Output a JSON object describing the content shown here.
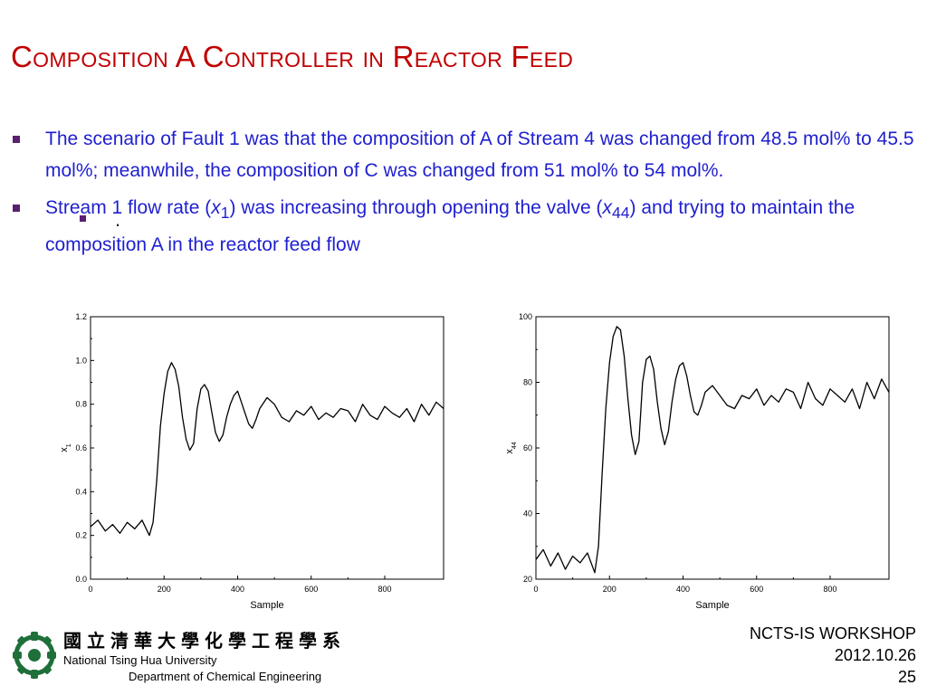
{
  "slide": {
    "title": "Composition A Controller in Reactor Feed",
    "bullets": [
      {
        "parts": [
          "The scenario of Fault 1 was that the composition of A of Stream 4 was changed from 48.5 mol% to 45.5 mol%; meanwhile, the composition of C was changed from 51 mol% to 54 mol%."
        ]
      },
      {
        "p1": "Stream 1 flow rate (",
        "v1": "x",
        "s1": "1",
        "p2": ") was increasing through opening the valve (",
        "v2": "x",
        "s2": "44",
        "p3": ") and trying to maintain the composition A in the reactor feed flow"
      }
    ],
    "stray_dot": "."
  },
  "logo": {
    "zh": "國立清華大學化學工程學系",
    "en_line1": "National Tsing Hua University",
    "en_line2": "Department of Chemical Engineering"
  },
  "footer": {
    "line1": "NCTS-IS WORKSHOP",
    "line2": "2012.10.26",
    "page": "25"
  },
  "chart_data": [
    {
      "type": "line",
      "xlabel": "Sample",
      "ylabel": "x",
      "ylabel_sub": "1",
      "xlim": [
        0,
        960
      ],
      "ylim": [
        0,
        1.2
      ],
      "xticks": [
        0,
        200,
        400,
        600,
        800
      ],
      "yticks": [
        0.0,
        0.2,
        0.4,
        0.6,
        0.8,
        1.0,
        1.2
      ],
      "ytick_labels": [
        "0.0",
        "0.2",
        "0.4",
        "0.6",
        "0.8",
        "1.0",
        "1.2"
      ],
      "series": [
        {
          "x": [
            0,
            20,
            40,
            60,
            80,
            100,
            120,
            140,
            160,
            170,
            180,
            190,
            200,
            210,
            220,
            230,
            240,
            250,
            260,
            270,
            280,
            290,
            300,
            310,
            320,
            330,
            340,
            350,
            360,
            370,
            380,
            390,
            400,
            410,
            420,
            430,
            440,
            450,
            460,
            480,
            500,
            520,
            540,
            560,
            580,
            600,
            620,
            640,
            660,
            680,
            700,
            720,
            740,
            760,
            780,
            800,
            820,
            840,
            860,
            880,
            900,
            920,
            940,
            960
          ],
          "values": [
            0.24,
            0.27,
            0.22,
            0.25,
            0.21,
            0.26,
            0.23,
            0.27,
            0.2,
            0.26,
            0.45,
            0.7,
            0.85,
            0.95,
            0.99,
            0.96,
            0.88,
            0.74,
            0.64,
            0.59,
            0.62,
            0.78,
            0.87,
            0.89,
            0.86,
            0.76,
            0.67,
            0.63,
            0.66,
            0.74,
            0.8,
            0.84,
            0.86,
            0.81,
            0.76,
            0.71,
            0.69,
            0.73,
            0.78,
            0.83,
            0.8,
            0.74,
            0.72,
            0.77,
            0.75,
            0.79,
            0.73,
            0.76,
            0.74,
            0.78,
            0.77,
            0.72,
            0.8,
            0.75,
            0.73,
            0.79,
            0.76,
            0.74,
            0.78,
            0.72,
            0.8,
            0.75,
            0.81,
            0.78
          ]
        }
      ]
    },
    {
      "type": "line",
      "xlabel": "Sample",
      "ylabel": "x",
      "ylabel_sub": "44",
      "xlim": [
        0,
        960
      ],
      "ylim": [
        20,
        100
      ],
      "xticks": [
        0,
        200,
        400,
        600,
        800
      ],
      "yticks": [
        20,
        40,
        60,
        80,
        100
      ],
      "ytick_labels": [
        "20",
        "40",
        "60",
        "80",
        "100"
      ],
      "series": [
        {
          "x": [
            0,
            20,
            40,
            60,
            80,
            100,
            120,
            140,
            160,
            170,
            180,
            190,
            200,
            210,
            220,
            230,
            240,
            250,
            260,
            270,
            280,
            290,
            300,
            310,
            320,
            330,
            340,
            350,
            360,
            370,
            380,
            390,
            400,
            410,
            420,
            430,
            440,
            450,
            460,
            480,
            500,
            520,
            540,
            560,
            580,
            600,
            620,
            640,
            660,
            680,
            700,
            720,
            740,
            760,
            780,
            800,
            820,
            840,
            860,
            880,
            900,
            920,
            940,
            960
          ],
          "values": [
            26,
            29,
            24,
            28,
            23,
            27,
            25,
            28,
            22,
            30,
            52,
            72,
            86,
            94,
            97,
            96,
            88,
            75,
            64,
            58,
            62,
            80,
            87,
            88,
            84,
            74,
            66,
            61,
            65,
            74,
            81,
            85,
            86,
            82,
            76,
            71,
            70,
            73,
            77,
            79,
            76,
            73,
            72,
            76,
            75,
            78,
            73,
            76,
            74,
            78,
            77,
            72,
            80,
            75,
            73,
            78,
            76,
            74,
            78,
            72,
            80,
            75,
            81,
            77
          ]
        }
      ]
    }
  ]
}
